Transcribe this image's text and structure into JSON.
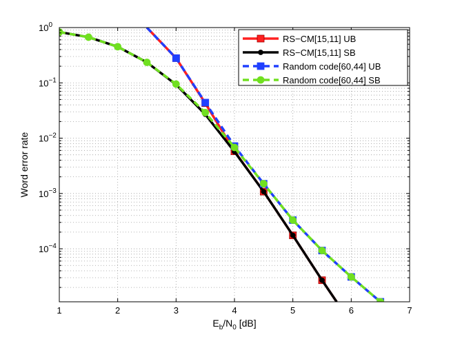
{
  "chart_data": {
    "type": "line",
    "title": "",
    "xlabel": "E_b/N_0 [dB]",
    "xlabel_parts": {
      "e": "E",
      "b": "b",
      "slash": "/N",
      "zero": "0",
      "unit": " [dB]"
    },
    "ylabel": "Word error rate",
    "xlim": [
      1,
      7
    ],
    "ylim": [
      1.1e-05,
      1
    ],
    "yscale": "log",
    "grid": true,
    "legend_position": "top-right",
    "x_ticks": [
      1,
      2,
      3,
      4,
      5,
      6,
      7
    ],
    "x_tick_labels": [
      "1",
      "2",
      "3",
      "4",
      "5",
      "6",
      "7"
    ],
    "y_ticks": [
      {
        "value": 1,
        "base": "10",
        "exp": "0"
      },
      {
        "value": 0.1,
        "base": "10",
        "exp": "−1"
      },
      {
        "value": 0.01,
        "base": "10",
        "exp": "−2"
      },
      {
        "value": 0.001,
        "base": "10",
        "exp": "−3"
      },
      {
        "value": 0.0001,
        "base": "10",
        "exp": "−4"
      }
    ],
    "series": [
      {
        "name": "RS−CM[15,11] UB",
        "color": "#ff2020",
        "line": "solid",
        "marker": "square",
        "x": [
          2.5,
          3.0,
          3.5,
          4.0,
          4.5,
          5.0,
          5.5,
          5.75
        ],
        "y": [
          1.0,
          0.28,
          0.043,
          0.0058,
          0.00108,
          0.000175,
          2.7e-05,
          1.1e-05
        ],
        "markers_x": [
          3.0,
          3.5,
          4.0,
          4.5,
          5.0,
          5.5
        ],
        "markers_y": [
          0.28,
          0.043,
          0.0058,
          0.00108,
          0.000175,
          2.7e-05
        ]
      },
      {
        "name": "RS−CM[15,11] SB",
        "color": "#000000",
        "line": "solid",
        "marker": "circle",
        "x": [
          1.0,
          1.5,
          2.0,
          2.5,
          3.0,
          3.5,
          4.0,
          4.5,
          5.0,
          5.5,
          5.75
        ],
        "y": [
          0.83,
          0.67,
          0.45,
          0.235,
          0.093,
          0.027,
          0.0057,
          0.00108,
          0.000175,
          2.7e-05,
          1.1e-05
        ],
        "markers_x": [
          1.0,
          1.5,
          2.0,
          2.5,
          3.0,
          3.5,
          4.0,
          4.5,
          5.0,
          5.5
        ],
        "markers_y": [
          0.83,
          0.67,
          0.45,
          0.235,
          0.093,
          0.027,
          0.0057,
          0.00108,
          0.000175,
          2.7e-05
        ]
      },
      {
        "name": "Random code[60,44] UB",
        "color": "#2040ff",
        "line": "dashed",
        "marker": "square",
        "x": [
          2.5,
          3.0,
          3.5,
          4.0,
          4.5,
          5.0,
          5.5,
          6.0,
          6.5
        ],
        "y": [
          1.0,
          0.28,
          0.044,
          0.0072,
          0.0015,
          0.00033,
          9.3e-05,
          3.1e-05,
          1.1e-05
        ],
        "markers_x": [
          3.0,
          3.5,
          4.0,
          4.5,
          5.0,
          5.5,
          6.0,
          6.5
        ],
        "markers_y": [
          0.28,
          0.044,
          0.0072,
          0.0015,
          0.00033,
          9.3e-05,
          3.1e-05,
          1.1e-05
        ]
      },
      {
        "name": "Random code[60,44] SB",
        "color": "#70e020",
        "line": "dashed",
        "marker": "circle",
        "x": [
          1.0,
          1.5,
          2.0,
          2.5,
          3.0,
          3.5,
          4.0,
          4.5,
          5.0,
          5.5,
          6.0,
          6.5
        ],
        "y": [
          0.83,
          0.67,
          0.45,
          0.235,
          0.095,
          0.029,
          0.0068,
          0.0015,
          0.00033,
          9.3e-05,
          3.1e-05,
          1.1e-05
        ],
        "markers_x": [
          1.0,
          1.5,
          2.0,
          2.5,
          3.0,
          3.5,
          4.0,
          4.5,
          5.0,
          5.5,
          6.0,
          6.5
        ],
        "markers_y": [
          0.83,
          0.67,
          0.45,
          0.235,
          0.095,
          0.029,
          0.0068,
          0.0015,
          0.00033,
          9.3e-05,
          3.1e-05,
          1.1e-05
        ]
      }
    ]
  }
}
